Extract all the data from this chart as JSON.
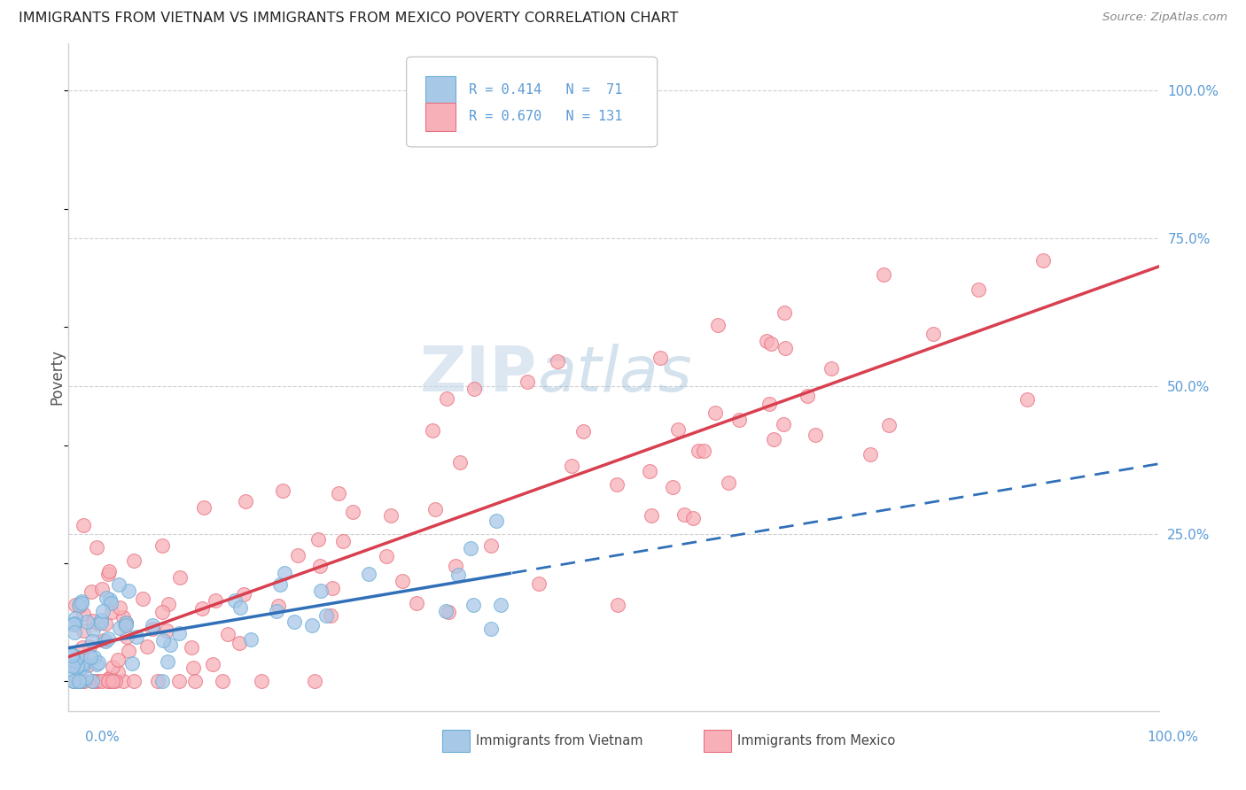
{
  "title": "IMMIGRANTS FROM VIETNAM VS IMMIGRANTS FROM MEXICO POVERTY CORRELATION CHART",
  "source": "Source: ZipAtlas.com",
  "ylabel": "Poverty",
  "color_vietnam_fill": "#a8c8e8",
  "color_vietnam_edge": "#6baed6",
  "color_mexico_fill": "#f8b0b8",
  "color_mexico_edge": "#e87080",
  "color_line_vietnam": "#3070b8",
  "color_line_mexico": "#d84050",
  "watermark_color": "#c5d8ea",
  "grid_color": "#d0d0d0",
  "right_tick_color": "#5b9bd5",
  "title_color": "#222222",
  "source_color": "#888888",
  "ylabel_color": "#555555",
  "bottom_label_color": "#444444"
}
